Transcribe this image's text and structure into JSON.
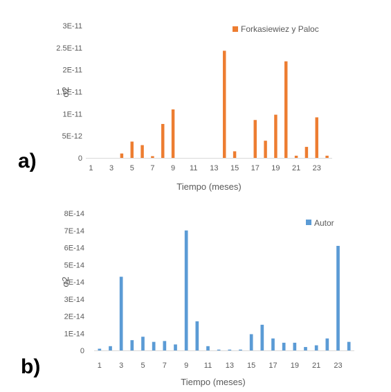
{
  "chart_data": [
    {
      "type": "bar",
      "panel_label": "a)",
      "xlabel": "Tiempo (meses)",
      "ylabel": "σ2",
      "ylim": [
        0,
        3e-11
      ],
      "y_ticks": [
        "0",
        "5E-12",
        "1E-11",
        "1.5E-11",
        "2E-11",
        "2.5E-11",
        "3E-11"
      ],
      "x_ticks": [
        "1",
        "3",
        "5",
        "7",
        "9",
        "11",
        "13",
        "15",
        "17",
        "19",
        "21",
        "23"
      ],
      "categories": [
        1,
        2,
        3,
        4,
        5,
        6,
        7,
        8,
        9,
        10,
        11,
        12,
        13,
        14,
        15,
        16,
        17,
        18,
        19,
        20,
        21,
        22,
        23,
        24
      ],
      "series": [
        {
          "name": "Forkasiewiez y Paloc",
          "color": "#ED7D31",
          "values": [
            0,
            0,
            0,
            1e-12,
            3.7e-12,
            2.9e-12,
            4e-13,
            7.7e-12,
            1.1e-11,
            0,
            0,
            0,
            0,
            2.43e-11,
            1.5e-12,
            0,
            8.6e-12,
            3.9e-12,
            9.8e-12,
            2.19e-11,
            5e-13,
            2.5e-12,
            9.2e-12,
            5e-13
          ]
        }
      ],
      "legend_position": "top-right",
      "grid": false
    },
    {
      "type": "bar",
      "panel_label": "b)",
      "xlabel": "Tiempo (meses)",
      "ylabel": "σ2",
      "ylim": [
        0,
        8e-14
      ],
      "y_ticks": [
        "0",
        "1E-14",
        "2E-14",
        "3E-14",
        "4E-14",
        "5E-14",
        "6E-14",
        "7E-14",
        "8E-14"
      ],
      "x_ticks": [
        "1",
        "3",
        "5",
        "7",
        "9",
        "11",
        "13",
        "15",
        "17",
        "19",
        "21",
        "23"
      ],
      "categories": [
        1,
        2,
        3,
        4,
        5,
        6,
        7,
        8,
        9,
        10,
        11,
        12,
        13,
        14,
        15,
        16,
        17,
        18,
        19,
        20,
        21,
        22,
        23,
        24
      ],
      "series": [
        {
          "name": "Autor",
          "color": "#5B9BD5",
          "values": [
            1e-15,
            2.5e-15,
            4.3e-14,
            6e-15,
            8e-15,
            5e-15,
            5.5e-15,
            3.5e-15,
            7e-14,
            1.7e-14,
            2.5e-15,
            5e-16,
            5e-16,
            5e-16,
            9.5e-15,
            1.5e-14,
            7e-15,
            4.5e-15,
            4.5e-15,
            2e-15,
            3e-15,
            7e-15,
            6.1e-14,
            5e-15
          ]
        }
      ],
      "legend_position": "top-right",
      "grid": false
    }
  ]
}
